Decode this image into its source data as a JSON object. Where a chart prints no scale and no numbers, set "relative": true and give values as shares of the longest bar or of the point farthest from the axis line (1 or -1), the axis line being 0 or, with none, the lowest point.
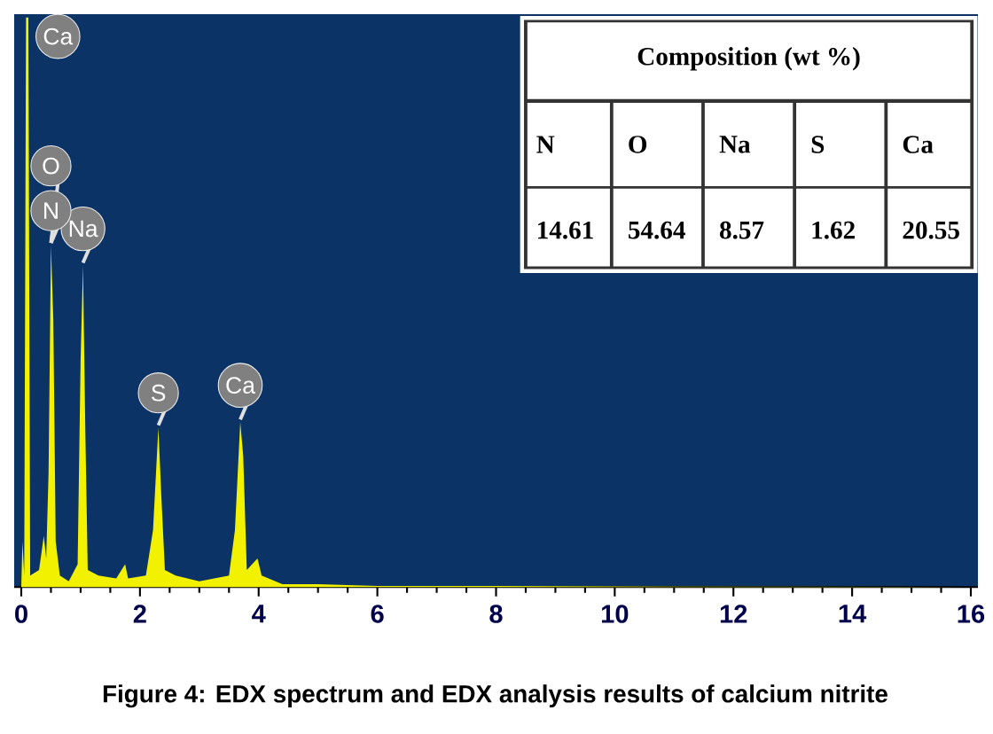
{
  "chart_data": {
    "type": "area",
    "title": "Figure 4: EDX spectrum and EDX analysis results of calcium nitrite",
    "relative": true,
    "x": [
      0,
      0.02,
      0.05,
      0.08,
      0.12,
      0.15,
      0.3,
      0.38,
      0.42,
      0.46,
      0.5,
      0.54,
      0.58,
      0.65,
      0.8,
      0.95,
      1.0,
      1.04,
      1.08,
      1.12,
      1.3,
      1.6,
      1.75,
      1.8,
      2.1,
      2.22,
      2.31,
      2.36,
      2.42,
      2.6,
      3.0,
      3.5,
      3.6,
      3.69,
      3.74,
      3.8,
      3.98,
      4.05,
      4.4,
      5,
      6,
      8,
      10,
      16
    ],
    "series": [
      {
        "color": "#f2f200",
        "values": [
          0,
          0.08,
          0.02,
          1.0,
          1.0,
          0.02,
          0.03,
          0.09,
          0.05,
          0.2,
          0.6,
          0.47,
          0.08,
          0.02,
          0.01,
          0.04,
          0.4,
          0.565,
          0.27,
          0.03,
          0.02,
          0.015,
          0.04,
          0.015,
          0.02,
          0.1,
          0.28,
          0.16,
          0.03,
          0.02,
          0.01,
          0.02,
          0.1,
          0.29,
          0.23,
          0.03,
          0.05,
          0.02,
          0.005,
          0.005,
          0.002,
          0.002,
          0.001,
          0
        ]
      }
    ],
    "xlim": [
      -0.12,
      16.12
    ],
    "xticks": [
      0,
      2,
      4,
      6,
      8,
      10,
      12,
      14,
      16
    ],
    "grid": false,
    "marker": "none",
    "annotations": [
      {
        "text": "Ca",
        "x": 0.12,
        "y": 1.0
      },
      {
        "text": "O",
        "x": 0.5,
        "y": 0.6
      },
      {
        "text": "Na",
        "x": 1.04,
        "y": 0.565
      },
      {
        "text": "N",
        "x": 0.5,
        "y": 0.6
      },
      {
        "text": "S",
        "x": 2.31,
        "y": 0.28
      },
      {
        "text": "Ca",
        "x": 3.69,
        "y": 0.29
      },
      "Composition  (wt %)",
      "N",
      "O",
      "Na",
      "S",
      "Ca",
      "14.61",
      "54.64",
      "8.57",
      "1.62",
      "20.55"
    ]
  }
}
